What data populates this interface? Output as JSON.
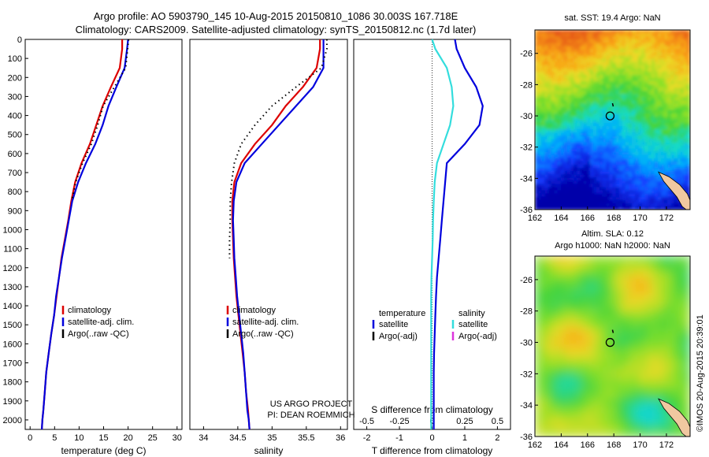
{
  "header": {
    "line1": "Argo profile: AO 5903790_145 10-Aug-2015 20150810_1086 30.003S 167.718E",
    "line2": "Climatology: CARS2009. Satellite-adjusted climatology: synTS_20150812.nc (1.7d later)"
  },
  "colors": {
    "climatology": "#dd0000",
    "satellite": "#0000dd",
    "argo": "#000000",
    "s_satellite": "#33dddd",
    "s_argo": "#dd33dd"
  },
  "credits": {
    "line1": "US ARGO PROJECT",
    "line2": "PI: DEAN ROEMMICH",
    "side": "©IMOS 20-Aug-2015 20:39:01"
  },
  "chart_data": [
    {
      "type": "line",
      "id": "temperature",
      "xlabel": "temperature (deg C)",
      "xlim": [
        -1,
        31
      ],
      "ylim": [
        0,
        2050
      ],
      "y_inverted": true,
      "xticks": [
        0,
        5,
        10,
        15,
        20,
        25,
        30
      ],
      "yticks": [
        0,
        100,
        200,
        300,
        400,
        500,
        600,
        700,
        800,
        900,
        1000,
        1100,
        1200,
        1300,
        1400,
        1500,
        1600,
        1700,
        1800,
        1900,
        2000
      ],
      "legend": [
        "climatology",
        "satellite-adj. clim.",
        "Argo(..raw -QC)"
      ],
      "series": [
        {
          "name": "climatology",
          "color": "#dd0000",
          "style": "solid",
          "x": [
            18.8,
            18.8,
            18.3,
            16.5,
            14.8,
            13.5,
            12.2,
            10.5,
            9.2,
            8.4,
            7.8,
            7.1,
            6.4,
            5.9,
            5.4,
            4.9,
            4.3,
            3.8,
            3.3,
            3.0,
            2.7,
            2.5,
            2.4
          ],
          "y": [
            0,
            50,
            150,
            250,
            350,
            450,
            550,
            650,
            750,
            850,
            950,
            1050,
            1150,
            1250,
            1350,
            1450,
            1550,
            1650,
            1750,
            1850,
            1950,
            2000,
            2050
          ]
        },
        {
          "name": "satellite-adj. clim.",
          "color": "#0000dd",
          "style": "solid",
          "x": [
            20.0,
            19.8,
            19.3,
            17.6,
            16.0,
            14.8,
            13.3,
            11.4,
            9.8,
            8.6,
            7.9,
            7.2,
            6.5,
            5.9,
            5.3,
            4.9,
            4.3,
            3.8,
            3.3,
            3.0,
            2.7,
            2.5,
            2.4
          ],
          "y": [
            0,
            50,
            150,
            250,
            350,
            450,
            550,
            650,
            750,
            850,
            950,
            1050,
            1150,
            1250,
            1350,
            1450,
            1550,
            1650,
            1750,
            1850,
            1950,
            2000,
            2050
          ]
        },
        {
          "name": "Argo(..raw -QC)",
          "color": "#000000",
          "style": "dotted",
          "x": [
            20.1,
            19.9,
            19.5,
            17.2,
            14.9,
            13.8,
            12.5,
            10.7,
            9.3,
            8.5
          ],
          "y": [
            0,
            50,
            150,
            250,
            350,
            450,
            550,
            650,
            750,
            850
          ]
        }
      ]
    },
    {
      "type": "line",
      "id": "salinity",
      "xlabel": "salinity",
      "xlim": [
        33.8,
        36.1
      ],
      "ylim": [
        0,
        2050
      ],
      "y_inverted": true,
      "xticks": [
        34,
        34.5,
        35,
        35.5,
        36
      ],
      "legend": [
        "climatology",
        "satellite-adj. clim.",
        "Argo(..raw -QC)"
      ],
      "series": [
        {
          "name": "climatology",
          "color": "#dd0000",
          "style": "solid",
          "x": [
            35.7,
            35.7,
            35.65,
            35.45,
            35.2,
            35.0,
            34.75,
            34.55,
            34.45,
            34.42,
            34.42,
            34.43,
            34.44,
            34.46,
            34.48,
            34.51,
            34.54,
            34.57,
            34.6,
            34.62,
            34.65,
            34.66,
            34.67
          ],
          "y": [
            0,
            50,
            150,
            250,
            350,
            450,
            550,
            650,
            750,
            850,
            950,
            1050,
            1150,
            1250,
            1350,
            1450,
            1550,
            1650,
            1750,
            1850,
            1950,
            2000,
            2050
          ]
        },
        {
          "name": "satellite-adj. clim.",
          "color": "#0000dd",
          "style": "solid",
          "x": [
            35.75,
            35.75,
            35.75,
            35.6,
            35.35,
            35.1,
            34.85,
            34.6,
            34.48,
            34.44,
            34.43,
            34.44,
            34.45,
            34.47,
            34.49,
            34.52,
            34.55,
            34.58,
            34.6,
            34.62,
            34.64,
            34.66,
            34.67
          ],
          "y": [
            0,
            50,
            150,
            250,
            350,
            450,
            550,
            650,
            750,
            850,
            950,
            1050,
            1150,
            1250,
            1350,
            1450,
            1550,
            1650,
            1750,
            1850,
            1950,
            2000,
            2050
          ]
        },
        {
          "name": "Argo(..raw -QC)",
          "color": "#000000",
          "style": "dotted",
          "x": [
            35.8,
            35.8,
            35.72,
            35.35,
            35.0,
            34.75,
            34.55,
            34.45,
            34.41,
            34.39,
            34.39,
            34.38,
            34.38
          ],
          "y": [
            0,
            50,
            150,
            250,
            350,
            450,
            550,
            650,
            750,
            850,
            950,
            1050,
            1150
          ]
        }
      ]
    },
    {
      "type": "line",
      "id": "difference",
      "xlabel": "T difference from climatology",
      "xlabel_top": "S difference from climatology",
      "xlim": [
        -2.4,
        2.4
      ],
      "ylim": [
        0,
        2050
      ],
      "y_inverted": true,
      "xticks": [
        -2,
        -1,
        0,
        1,
        2
      ],
      "xticks_top": [
        -0.5,
        -0.25,
        0,
        0.25,
        0.5
      ],
      "legend_titles": [
        "temperature",
        "salinity"
      ],
      "legend": [
        "satellite",
        "Argo(-adj)",
        "satellite",
        "Argo(-adj)"
      ],
      "series": [
        {
          "name": "satellite",
          "quantity": "temperature",
          "color": "#0000dd",
          "style": "solid",
          "x": [
            0.7,
            0.75,
            1.0,
            1.35,
            1.55,
            1.45,
            1.0,
            0.45,
            0.4,
            0.35,
            0.3,
            0.25,
            0.2,
            0.15,
            0.12,
            0.1,
            0.08,
            0.06,
            0.05,
            0.05,
            0.05
          ],
          "y": [
            0,
            50,
            150,
            250,
            350,
            450,
            550,
            650,
            750,
            850,
            950,
            1050,
            1150,
            1250,
            1350,
            1450,
            1550,
            1650,
            1750,
            1850,
            2050
          ]
        },
        {
          "name": "satellite",
          "quantity": "salinity",
          "color": "#33dddd",
          "style": "solid",
          "x": [
            0.0,
            0.1,
            0.45,
            0.6,
            0.65,
            0.55,
            0.35,
            0.15,
            0.08,
            0.05,
            0.03,
            0.02,
            0.0,
            -0.02,
            -0.03,
            -0.03,
            -0.03,
            -0.03,
            -0.03,
            -0.03,
            -0.03
          ],
          "y": [
            0,
            50,
            150,
            250,
            350,
            450,
            550,
            650,
            750,
            850,
            950,
            1050,
            1150,
            1250,
            1350,
            1450,
            1550,
            1650,
            1750,
            1850,
            2050
          ]
        }
      ]
    },
    {
      "type": "heatmap",
      "id": "sst_map",
      "title": "sat. SST: 19.4  Argo: NaN",
      "xlim": [
        162,
        173.8
      ],
      "ylim": [
        -36,
        -24.5
      ],
      "xticks": [
        162,
        164,
        166,
        168,
        170,
        172
      ],
      "yticks": [
        -26,
        -28,
        -30,
        -32,
        -34,
        -36
      ],
      "marker": {
        "lon": 167.718,
        "lat": -30.003
      }
    },
    {
      "type": "heatmap",
      "id": "sla_map",
      "title": "Altim. SLA: 0.12",
      "subtitle": "Argo h1000: NaN h2000: NaN",
      "xlim": [
        162,
        173.8
      ],
      "ylim": [
        -36,
        -24.5
      ],
      "xticks": [
        162,
        164,
        166,
        168,
        170,
        172
      ],
      "yticks": [
        -26,
        -28,
        -30,
        -32,
        -34,
        -36
      ],
      "marker": {
        "lon": 167.718,
        "lat": -30.003
      }
    }
  ]
}
